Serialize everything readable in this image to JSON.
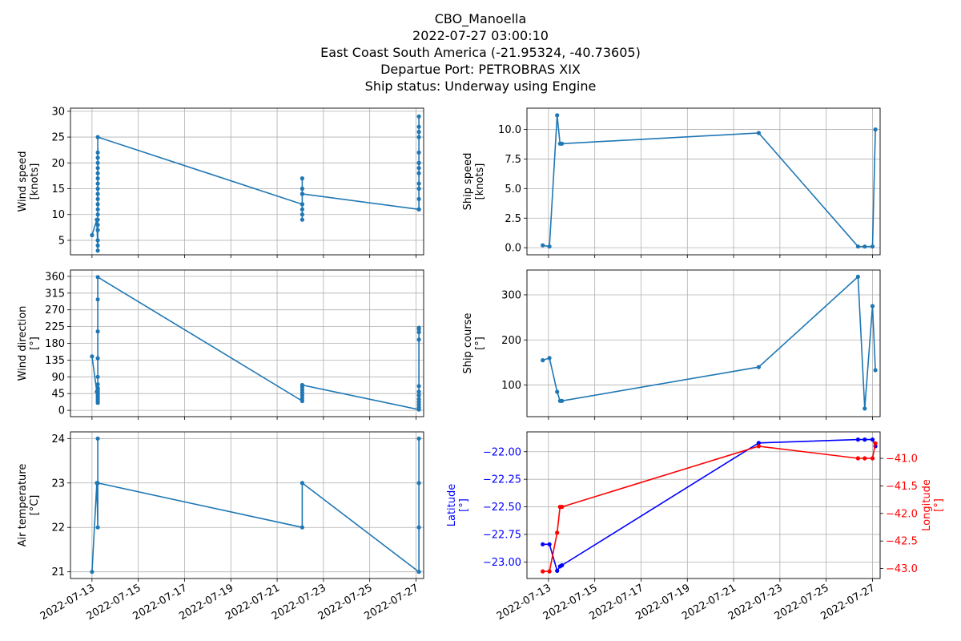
{
  "figure": {
    "title_lines": [
      "CBO_Manoella",
      "2022-07-27 03:00:10",
      "East Coast South America (-21.95324, -40.73605)",
      "Departue Port: PETROBRAS XIX",
      "Ship status: Underway using Engine"
    ],
    "x_tick_labels": [
      "2022-07-13",
      "2022-07-15",
      "2022-07-17",
      "2022-07-19",
      "2022-07-21",
      "2022-07-23",
      "2022-07-25",
      "2022-07-27"
    ],
    "x_range_days": [
      12.07,
      27.33
    ]
  },
  "colors": {
    "series": "#1f77b4",
    "latitude": "#0000ff",
    "longitude": "#ff0000",
    "grid": "#b0b0b0"
  },
  "chart_data": [
    {
      "type": "line",
      "ylabel": [
        "Wind speed",
        "[knots]"
      ],
      "ylim": [
        2.2,
        30.6
      ],
      "yticks": [
        5,
        10,
        15,
        20,
        25,
        30
      ],
      "yticklabels": [
        "5",
        "10",
        "15",
        "20",
        "25",
        "30"
      ],
      "grid": true,
      "series": [
        {
          "x": [
            "2022-07-13 00:00",
            "2022-07-13 05:00",
            "2022-07-13 06:00",
            "2022-07-13 06:00",
            "2022-07-13 06:00",
            "2022-07-13 06:00",
            "2022-07-13 06:00",
            "2022-07-13 06:00",
            "2022-07-13 06:00",
            "2022-07-13 06:00",
            "2022-07-13 06:00",
            "2022-07-13 06:00",
            "2022-07-13 06:00",
            "2022-07-13 06:00",
            "2022-07-13 06:00",
            "2022-07-13 06:00",
            "2022-07-13 06:00",
            "2022-07-13 06:00",
            "2022-07-13 06:00",
            "2022-07-13 06:00",
            "2022-07-13 06:00",
            "2022-07-13 06:00",
            "2022-07-22 02:00",
            "2022-07-22 02:00",
            "2022-07-22 02:00",
            "2022-07-22 02:00",
            "2022-07-22 02:00",
            "2022-07-22 02:00",
            "2022-07-22 02:00",
            "2022-07-22 02:00",
            "2022-07-22 02:00",
            "2022-07-27 03:00",
            "2022-07-27 03:00",
            "2022-07-27 03:00",
            "2022-07-27 03:00",
            "2022-07-27 03:00",
            "2022-07-27 03:00",
            "2022-07-27 03:00",
            "2022-07-27 03:00",
            "2022-07-27 03:00",
            "2022-07-27 03:00",
            "2022-07-27 03:00",
            "2022-07-27 03:00",
            "2022-07-27 03:00",
            "2022-07-27 03:00"
          ],
          "y": [
            6,
            9,
            3,
            4,
            5,
            7,
            8,
            9,
            10,
            11,
            12,
            13,
            14,
            15,
            16,
            17,
            18,
            19,
            20,
            21,
            22,
            25,
            12,
            9,
            10,
            11,
            12,
            14,
            15,
            17,
            14,
            11,
            11,
            13,
            15,
            16,
            18,
            19,
            20,
            22,
            25,
            26,
            27,
            29,
            20
          ]
        }
      ]
    },
    {
      "type": "line",
      "ylabel": [
        "Ship speed",
        "[knots]"
      ],
      "ylim": [
        -0.6,
        11.8
      ],
      "yticks": [
        0,
        2.5,
        5,
        7.5,
        10
      ],
      "yticklabels": [
        "0.0",
        "2.5",
        "5.0",
        "7.5",
        "10.0"
      ],
      "grid": true,
      "series": [
        {
          "x": [
            "2022-07-12 18:00",
            "2022-07-13 01:00",
            "2022-07-13 09:00",
            "2022-07-13 12:00",
            "2022-07-13 14:00",
            "2022-07-22 02:00",
            "2022-07-26 09:00",
            "2022-07-26 16:00",
            "2022-07-27 00:00",
            "2022-07-27 03:00"
          ],
          "y": [
            0.2,
            0.1,
            11.2,
            8.8,
            8.8,
            9.7,
            0.1,
            0.1,
            0.1,
            10.0
          ]
        }
      ]
    },
    {
      "type": "line",
      "ylabel": [
        "Wind direction",
        "[°]"
      ],
      "ylim": [
        -17,
        377
      ],
      "yticks": [
        0,
        45,
        90,
        135,
        180,
        225,
        270,
        315,
        360
      ],
      "yticklabels": [
        "0",
        "45",
        "90",
        "135",
        "180",
        "225",
        "270",
        "315",
        "360"
      ],
      "grid": true,
      "series": [
        {
          "x": [
            "2022-07-13 00:00",
            "2022-07-13 05:00",
            "2022-07-13 06:00",
            "2022-07-13 06:00",
            "2022-07-13 06:00",
            "2022-07-13 06:00",
            "2022-07-13 06:00",
            "2022-07-13 06:00",
            "2022-07-13 06:00",
            "2022-07-13 06:00",
            "2022-07-13 06:00",
            "2022-07-13 06:00",
            "2022-07-13 06:00",
            "2022-07-13 06:00",
            "2022-07-13 06:00",
            "2022-07-13 06:00",
            "2022-07-13 06:00",
            "2022-07-22 02:00",
            "2022-07-22 02:00",
            "2022-07-22 02:00",
            "2022-07-22 02:00",
            "2022-07-22 02:00",
            "2022-07-22 02:00",
            "2022-07-22 02:00",
            "2022-07-27 03:00",
            "2022-07-27 03:00",
            "2022-07-27 03:00",
            "2022-07-27 03:00",
            "2022-07-27 03:00",
            "2022-07-27 03:00",
            "2022-07-27 03:00",
            "2022-07-27 03:00",
            "2022-07-27 03:00",
            "2022-07-27 03:00",
            "2022-07-27 03:00",
            "2022-07-27 03:00"
          ],
          "y": [
            145,
            50,
            20,
            25,
            30,
            35,
            40,
            45,
            50,
            55,
            60,
            70,
            90,
            140,
            212,
            298,
            358,
            25,
            32,
            40,
            48,
            55,
            62,
            68,
            2,
            8,
            15,
            22,
            30,
            40,
            50,
            65,
            190,
            210,
            218,
            222
          ]
        }
      ]
    },
    {
      "type": "line",
      "ylabel": [
        "Ship course",
        "[°]"
      ],
      "ylim": [
        30,
        355
      ],
      "yticks": [
        100,
        200,
        300
      ],
      "yticklabels": [
        "100",
        "200",
        "300"
      ],
      "grid": true,
      "series": [
        {
          "x": [
            "2022-07-12 18:00",
            "2022-07-13 01:00",
            "2022-07-13 09:00",
            "2022-07-13 12:00",
            "2022-07-13 14:00",
            "2022-07-22 02:00",
            "2022-07-26 09:00",
            "2022-07-26 16:00",
            "2022-07-27 00:00",
            "2022-07-27 03:00"
          ],
          "y": [
            155,
            160,
            85,
            65,
            65,
            140,
            340,
            48,
            275,
            133
          ]
        }
      ]
    },
    {
      "type": "line",
      "ylabel": [
        "Air temperature",
        "[°C]"
      ],
      "ylim": [
        20.85,
        24.15
      ],
      "yticks": [
        21,
        22,
        23,
        24
      ],
      "yticklabels": [
        "21",
        "22",
        "23",
        "24"
      ],
      "grid": true,
      "series": [
        {
          "x": [
            "2022-07-13 00:00",
            "2022-07-13 05:00",
            "2022-07-13 06:00",
            "2022-07-13 06:00",
            "2022-07-13 06:00",
            "2022-07-22 02:00",
            "2022-07-22 02:00",
            "2022-07-22 02:00",
            "2022-07-27 03:00",
            "2022-07-27 03:00",
            "2022-07-27 03:00",
            "2022-07-27 03:00"
          ],
          "y": [
            21,
            23,
            22,
            24,
            23,
            22,
            23,
            23,
            21,
            22,
            24,
            23
          ]
        }
      ]
    },
    {
      "type": "line",
      "ylabel_left": [
        "Latitude",
        "[°]"
      ],
      "ylabel_right": [
        "Longitude",
        "[°]"
      ],
      "ylim_left": [
        -23.15,
        -21.82
      ],
      "yticks_left": [
        -23.0,
        -22.75,
        -22.5,
        -22.25,
        -22.0
      ],
      "yticklabels_left": [
        "−23.00",
        "−22.75",
        "−22.50",
        "−22.25",
        "−22.00"
      ],
      "ylim_right": [
        -43.18,
        -40.52
      ],
      "yticks_right": [
        -43.0,
        -42.5,
        -42.0,
        -41.5,
        -41.0
      ],
      "yticklabels_right": [
        "−43.0",
        "−42.5",
        "−42.0",
        "−41.5",
        "−41.0"
      ],
      "grid": true,
      "series": [
        {
          "axis": "left",
          "color": "#0000ff",
          "x": [
            "2022-07-12 18:00",
            "2022-07-13 01:00",
            "2022-07-13 09:00",
            "2022-07-13 12:00",
            "2022-07-13 14:00",
            "2022-07-22 02:00",
            "2022-07-26 09:00",
            "2022-07-26 16:00",
            "2022-07-27 00:00",
            "2022-07-27 03:00"
          ],
          "y": [
            -22.84,
            -22.84,
            -23.08,
            -23.04,
            -23.03,
            -21.92,
            -21.89,
            -21.89,
            -21.89,
            -21.95
          ]
        },
        {
          "axis": "right",
          "color": "#ff0000",
          "x": [
            "2022-07-12 18:00",
            "2022-07-13 01:00",
            "2022-07-13 09:00",
            "2022-07-13 12:00",
            "2022-07-13 14:00",
            "2022-07-22 02:00",
            "2022-07-26 09:00",
            "2022-07-26 16:00",
            "2022-07-27 00:00",
            "2022-07-27 03:00"
          ],
          "y": [
            -43.05,
            -43.05,
            -42.35,
            -41.88,
            -41.88,
            -40.78,
            -41.0,
            -41.0,
            -41.0,
            -40.73
          ]
        }
      ]
    }
  ]
}
